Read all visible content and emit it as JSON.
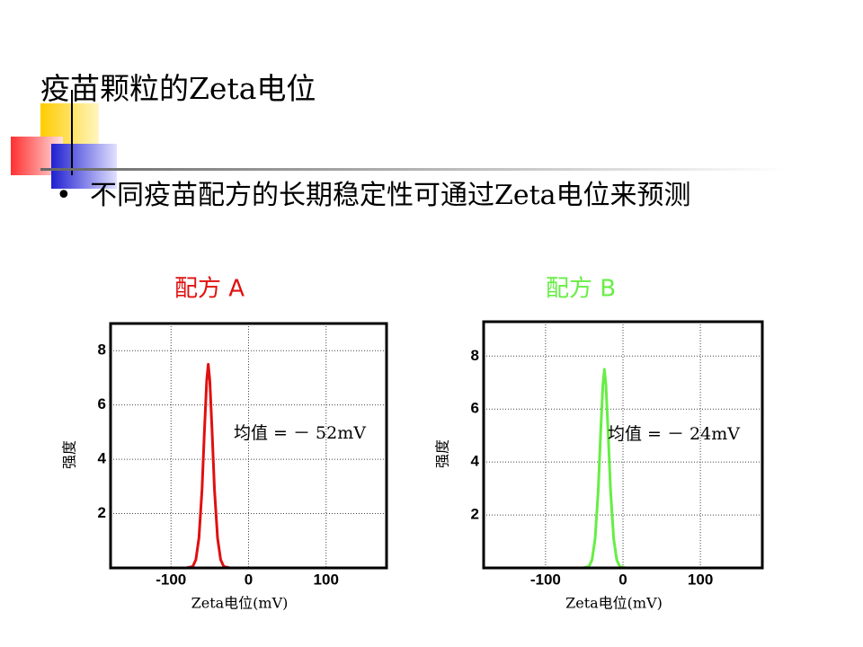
{
  "slide": {
    "title": "疫苗颗粒的Zeta电位",
    "bullet": "不同疫苗配方的长期稳定性可通过Zeta电位来预测"
  },
  "chart_data": [
    {
      "type": "line",
      "title": "配方 A",
      "x_label": "Zeta电位(mV)",
      "y_label": "强度",
      "annotation": "均值 = － 52mV",
      "x": [
        -150,
        -80,
        -72,
        -68,
        -64,
        -60,
        -57,
        -54,
        -52,
        -50,
        -47,
        -44,
        -40,
        -36,
        -32,
        -24,
        145
      ],
      "series": [
        {
          "color": "#e01010",
          "values": [
            0,
            0,
            0.05,
            0.3,
            1.1,
            2.9,
            5.0,
            6.9,
            7.5,
            6.9,
            5.0,
            2.9,
            1.1,
            0.3,
            0.05,
            0,
            0
          ]
        }
      ],
      "xlim": [
        -178,
        178
      ],
      "ylim": [
        0,
        9
      ],
      "xticks": [
        -100,
        0,
        100
      ],
      "yticks": [
        2,
        4,
        6,
        8
      ],
      "grid": true
    },
    {
      "type": "line",
      "title": "配方 B",
      "x_label": "Zeta电位(mV)",
      "y_label": "强度",
      "annotation": "均值 = － 24mV",
      "x": [
        -135,
        -52,
        -44,
        -40,
        -36,
        -32,
        -29,
        -26,
        -24,
        -22,
        -19,
        -16,
        -12,
        -8,
        -4,
        4,
        165
      ],
      "series": [
        {
          "color": "#66ee44",
          "values": [
            0,
            0,
            0.05,
            0.3,
            1.1,
            2.9,
            5.0,
            6.9,
            7.5,
            6.9,
            5.0,
            2.9,
            1.1,
            0.3,
            0.05,
            0,
            0
          ]
        }
      ],
      "xlim": [
        -180,
        180
      ],
      "ylim": [
        0,
        9.3
      ],
      "xticks": [
        -100,
        0,
        100
      ],
      "yticks": [
        2,
        4,
        6,
        8
      ],
      "grid": true
    }
  ]
}
